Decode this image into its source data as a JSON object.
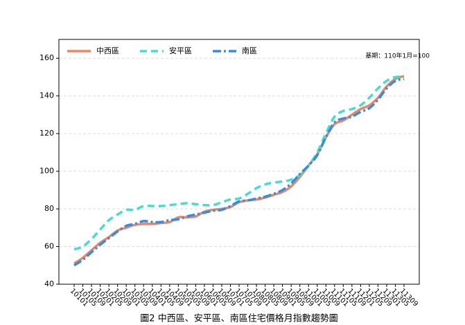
{
  "chart_data": {
    "type": "line",
    "title": "圖2 中西區、安平區、南區住宅價格月指數趨勢圖",
    "annotation": "基期：110年1月=100",
    "categories": [
      "10101",
      "10105",
      "10109",
      "10201",
      "10205",
      "10209",
      "10301",
      "10305",
      "10309",
      "10401",
      "10405",
      "10409",
      "10501",
      "10505",
      "10509",
      "10601",
      "10605",
      "10609",
      "10701",
      "10705",
      "10709",
      "10801",
      "10805",
      "10809",
      "10901",
      "10905",
      "10909",
      "11001",
      "11005",
      "11009",
      "11101",
      "11105",
      "11109",
      "11201",
      "11205",
      "11209",
      "11301",
      "11305",
      "11309"
    ],
    "series": [
      {
        "name": "中西區",
        "color": "#f4845f",
        "dash": "solid",
        "values": [
          51,
          54,
          58,
          62,
          65,
          68.5,
          70,
          71.5,
          72,
          72,
          72.5,
          73,
          75.5,
          75.5,
          76,
          78.5,
          79.5,
          80,
          81,
          83.5,
          84.5,
          85,
          86,
          87.5,
          89,
          92,
          97,
          103,
          109,
          118,
          125,
          127,
          130,
          133,
          135,
          139,
          145,
          149,
          150.5
        ]
      },
      {
        "name": "安平區",
        "color": "#40e0d0",
        "dash": "dashed",
        "values": [
          58.5,
          60,
          64,
          69,
          74,
          77,
          79.5,
          79.5,
          81.5,
          81.5,
          81.5,
          82,
          82.5,
          83,
          82.5,
          82,
          82,
          83.5,
          85,
          85.5,
          88,
          91,
          93,
          94,
          94.5,
          95.5,
          98,
          103,
          110,
          120,
          129,
          132,
          133,
          135,
          139,
          144,
          148,
          150,
          150
        ]
      },
      {
        "name": "南區",
        "color": "#2e8fe8",
        "dash": "dashdot",
        "values": [
          50,
          53,
          57,
          61,
          64.5,
          68,
          71,
          72,
          73.5,
          73,
          73,
          74,
          74.5,
          76,
          77,
          78,
          79,
          79.5,
          81.5,
          84,
          84.5,
          85.5,
          86.5,
          88,
          90,
          93.5,
          98.5,
          103,
          108.5,
          118,
          126,
          128,
          129,
          131.5,
          133.5,
          138,
          144,
          148,
          149
        ]
      }
    ],
    "ylim": [
      40,
      170
    ],
    "yticks": [
      40,
      60,
      80,
      100,
      120,
      140,
      160
    ],
    "grid": true,
    "legend": "upper left"
  }
}
